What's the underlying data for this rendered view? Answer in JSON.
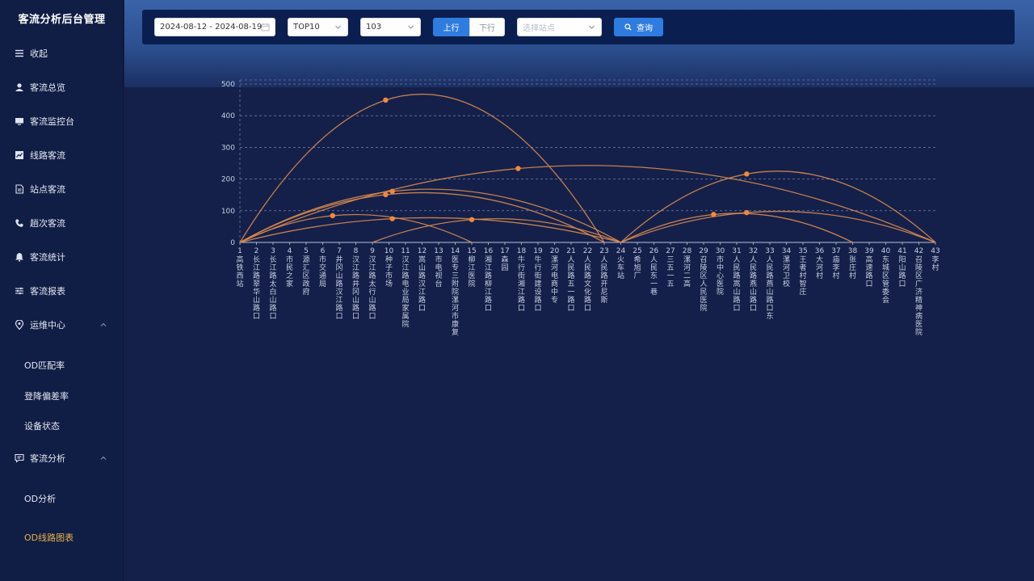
{
  "app": {
    "title": "客流分析后台管理"
  },
  "sidebar": {
    "items": [
      {
        "label": "收起",
        "icon": "menu-icon"
      },
      {
        "label": "客流总览",
        "icon": "user-icon"
      },
      {
        "label": "客流监控台",
        "icon": "monitor-icon"
      },
      {
        "label": "线路客流",
        "icon": "line-chart-icon"
      },
      {
        "label": "站点客流",
        "icon": "document-icon"
      },
      {
        "label": "趟次客流",
        "icon": "phone-icon"
      },
      {
        "label": "客流统计",
        "icon": "bell-icon"
      },
      {
        "label": "客流报表",
        "icon": "sliders-icon"
      },
      {
        "label": "运维中心",
        "icon": "location-pin-icon"
      }
    ],
    "ops_children": [
      {
        "label": "OD匹配率"
      },
      {
        "label": "登降偏差率"
      },
      {
        "label": "设备状态"
      }
    ],
    "analysis": {
      "label": "客流分析",
      "icon": "chat-icon"
    },
    "analysis_children": [
      {
        "label": "OD分析"
      },
      {
        "label": "OD线路图表"
      }
    ]
  },
  "toolbar": {
    "date_range": "2024-08-12 - 2024-08-19",
    "top_select": "TOP10",
    "line_select": "103",
    "direction_up": "上行",
    "direction_down": "下行",
    "station_placeholder": "选择站点",
    "query_label": "查询"
  },
  "colors": {
    "accent": "#2f7ce0",
    "arc": "#d98a4e",
    "active_menu": "#e7b14a"
  },
  "chart_data": {
    "type": "arc",
    "ylim": [
      0,
      500
    ],
    "yticks": [
      0,
      100,
      200,
      300,
      400,
      500
    ],
    "stations": [
      "1 高铁西站",
      "2 长江路翠华山路口",
      "3 长江路太白山路口",
      "4 市民之家",
      "5 源汇区政府",
      "6 市交通局",
      "7 井冈山路汉江路口",
      "8 汉江路井冈山路口",
      "9 汉江路太行山路口",
      "10 种子市场",
      "11 汉江路电业局家属院",
      "12 嵩山路汉江路口",
      "13 市电视台",
      "14 医专三附院漯河市康复",
      "15 柳江医院",
      "16 湘江路柳江路口",
      "17 森园",
      "18 牛行街湘江路口",
      "19 牛行街建设路口",
      "20 漯河电商中专",
      "21 人民路五一路口",
      "22 人民路文化路口",
      "23 人民路开尼斯",
      "24 火车站",
      "25 希旭厂",
      "26 人民东一巷",
      "27 三五一五",
      "28 漯河二高",
      "29 召陵区人民医院",
      "30 市中心医院",
      "31 人民路嵩山路口",
      "32 人民路燕山路口",
      "33 人民路燕山路口东",
      "34 漯河卫校",
      "35 王者村智庄",
      "36 大河村",
      "37 庙李村",
      "38 张庄村",
      "39 高速路口",
      "40 东城区管委会",
      "41 阳山路口",
      "42 召陵区广济精神病医院",
      "43 李村"
    ],
    "flows": [
      {
        "from": 1,
        "to": 23,
        "value": 468
      },
      {
        "from": 1,
        "to": 43,
        "value": 243
      },
      {
        "from": 24,
        "to": 43,
        "value": 225
      },
      {
        "from": 1,
        "to": 24,
        "value": 168
      },
      {
        "from": 1,
        "to": 23,
        "value": 157
      },
      {
        "from": 24,
        "to": 43,
        "value": 98
      },
      {
        "from": 1,
        "to": 15,
        "value": 88
      },
      {
        "from": 1,
        "to": 24,
        "value": 78
      },
      {
        "from": 9,
        "to": 24,
        "value": 75
      },
      {
        "from": 24,
        "to": 38,
        "value": 92
      }
    ]
  }
}
